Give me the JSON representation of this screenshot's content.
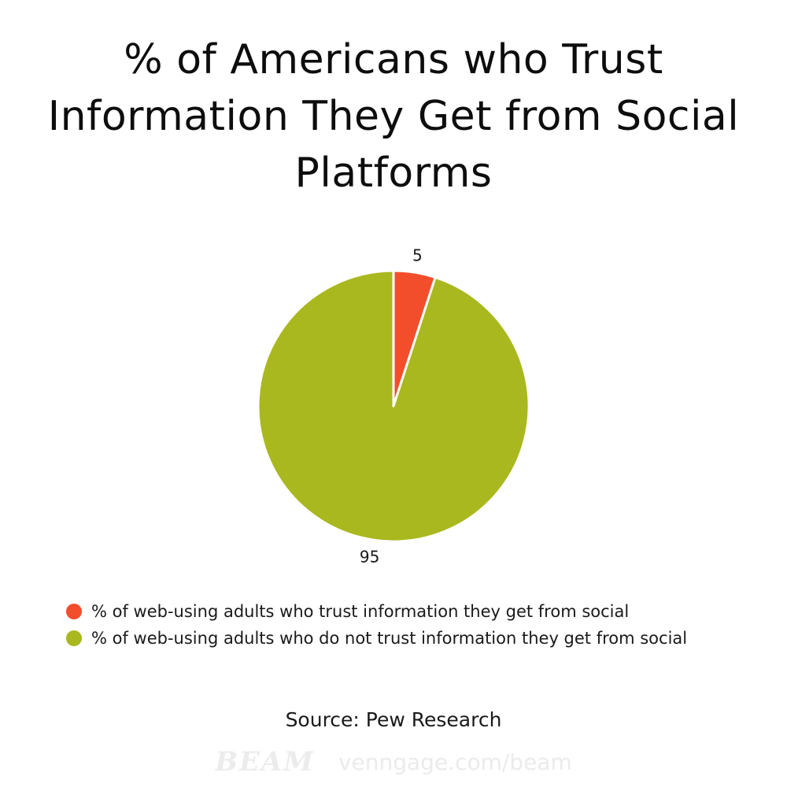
{
  "title": "% of Americans who Trust Information They Get from Social Platforms",
  "chart_data": {
    "type": "pie",
    "title": "% of Americans who Trust Information They Get from Social Platforms",
    "slices": [
      {
        "label": "% of web-using adults who trust information they get from social",
        "value": 5,
        "color": "#f34e2c"
      },
      {
        "label": "% of web-using adults who do not trust information they get from social",
        "value": 95,
        "color": "#a9b81e"
      }
    ],
    "legend_position": "bottom-left"
  },
  "legend": [
    {
      "label": "% of web-using adults who trust information they get from social",
      "color": "#f34e2c"
    },
    {
      "label": "% of web-using adults who do not trust information they get from social",
      "color": "#a9b81e"
    }
  ],
  "source": "Source: Pew Research",
  "watermark": {
    "logo": "BEAM",
    "url": "venngage.com/beam"
  }
}
